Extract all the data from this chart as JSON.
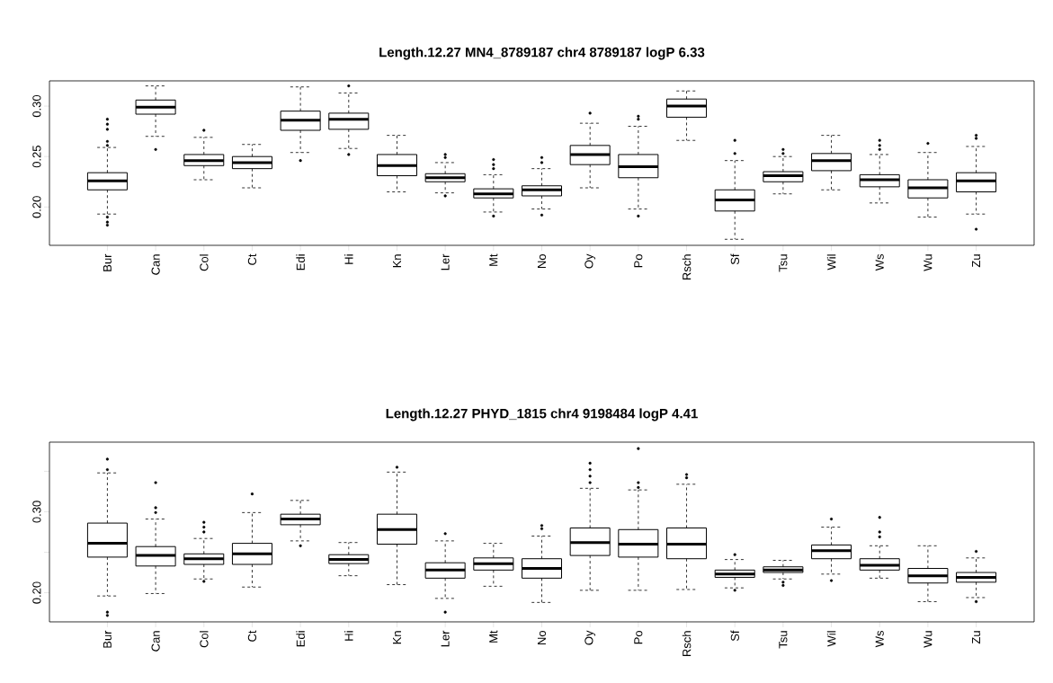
{
  "chart_data": [
    {
      "type": "box",
      "title": "Length.12.27 MN4_8789187 chr4 8789187 logP 6.33",
      "categories": [
        "Bur",
        "Can",
        "Col",
        "Ct",
        "Edi",
        "Hi",
        "Kn",
        "Ler",
        "Mt",
        "No",
        "Oy",
        "Po",
        "Rsch",
        "Sf",
        "Tsu",
        "Wil",
        "Ws",
        "Wu",
        "Zu"
      ],
      "ylim": [
        0.162,
        0.325
      ],
      "yticks": [
        {
          "value": 0.2,
          "label": "0.20"
        },
        0.25,
        {
          "value": 0.3,
          "label": "0.30"
        }
      ],
      "boxes": [
        {
          "low": 0.193,
          "q1": 0.217,
          "median": 0.226,
          "q3": 0.234,
          "high": 0.259,
          "outliers": [
            0.287,
            0.282,
            0.277,
            0.265,
            0.261,
            0.19,
            0.185,
            0.182
          ]
        },
        {
          "low": 0.27,
          "q1": 0.292,
          "median": 0.299,
          "q3": 0.306,
          "high": 0.32,
          "outliers": [
            0.257
          ]
        },
        {
          "low": 0.227,
          "q1": 0.241,
          "median": 0.246,
          "q3": 0.252,
          "high": 0.269,
          "outliers": [
            0.276
          ]
        },
        {
          "low": 0.219,
          "q1": 0.238,
          "median": 0.244,
          "q3": 0.25,
          "high": 0.262
        },
        {
          "low": 0.254,
          "q1": 0.276,
          "median": 0.286,
          "q3": 0.295,
          "high": 0.319,
          "outliers": [
            0.246
          ]
        },
        {
          "low": 0.258,
          "q1": 0.277,
          "median": 0.287,
          "q3": 0.293,
          "high": 0.313,
          "outliers": [
            0.32,
            0.252
          ]
        },
        {
          "low": 0.215,
          "q1": 0.231,
          "median": 0.241,
          "q3": 0.252,
          "high": 0.271
        },
        {
          "low": 0.214,
          "q1": 0.225,
          "median": 0.229,
          "q3": 0.233,
          "high": 0.244,
          "outliers": [
            0.252,
            0.249,
            0.211
          ]
        },
        {
          "low": 0.195,
          "q1": 0.209,
          "median": 0.213,
          "q3": 0.218,
          "high": 0.232,
          "outliers": [
            0.247,
            0.242,
            0.238,
            0.191
          ]
        },
        {
          "low": 0.198,
          "q1": 0.211,
          "median": 0.217,
          "q3": 0.221,
          "high": 0.238,
          "outliers": [
            0.249,
            0.244,
            0.192
          ]
        },
        {
          "low": 0.219,
          "q1": 0.242,
          "median": 0.252,
          "q3": 0.261,
          "high": 0.283,
          "outliers": [
            0.293
          ]
        },
        {
          "low": 0.198,
          "q1": 0.229,
          "median": 0.24,
          "q3": 0.252,
          "high": 0.28,
          "outliers": [
            0.29,
            0.287,
            0.191
          ]
        },
        {
          "low": 0.266,
          "q1": 0.289,
          "median": 0.3,
          "q3": 0.307,
          "high": 0.315
        },
        {
          "low": 0.168,
          "q1": 0.196,
          "median": 0.207,
          "q3": 0.217,
          "high": 0.246,
          "outliers": [
            0.266,
            0.253
          ]
        },
        {
          "low": 0.213,
          "q1": 0.225,
          "median": 0.231,
          "q3": 0.235,
          "high": 0.25,
          "outliers": [
            0.257,
            0.253
          ]
        },
        {
          "low": 0.217,
          "q1": 0.236,
          "median": 0.246,
          "q3": 0.253,
          "high": 0.271
        },
        {
          "low": 0.204,
          "q1": 0.22,
          "median": 0.227,
          "q3": 0.232,
          "high": 0.252,
          "outliers": [
            0.266,
            0.261,
            0.257
          ]
        },
        {
          "low": 0.19,
          "q1": 0.209,
          "median": 0.219,
          "q3": 0.227,
          "high": 0.254,
          "outliers": [
            0.263
          ]
        },
        {
          "low": 0.193,
          "q1": 0.215,
          "median": 0.226,
          "q3": 0.234,
          "high": 0.26,
          "outliers": [
            0.271,
            0.268,
            0.178
          ]
        }
      ]
    },
    {
      "type": "box",
      "title": "Length.12.27 PHYD_1815 chr4 9198484 logP 4.41",
      "categories": [
        "Bur",
        "Can",
        "Col",
        "Ct",
        "Edi",
        "Hi",
        "Kn",
        "Ler",
        "Mt",
        "No",
        "Oy",
        "Po",
        "Rsch",
        "Sf",
        "Tsu",
        "Wil",
        "Ws",
        "Wu",
        "Zu"
      ],
      "ylim": [
        0.164,
        0.386
      ],
      "yticks": [
        {
          "value": 0.2,
          "label": "0.20"
        },
        {
          "value": 0.25,
          "label": null
        },
        {
          "value": 0.3,
          "label": "0.30"
        },
        {
          "value": 0.35,
          "label": null
        }
      ],
      "boxes": [
        {
          "low": 0.196,
          "q1": 0.244,
          "median": 0.261,
          "q3": 0.286,
          "high": 0.348,
          "outliers": [
            0.365,
            0.352,
            0.176,
            0.172
          ]
        },
        {
          "low": 0.199,
          "q1": 0.233,
          "median": 0.246,
          "q3": 0.257,
          "high": 0.291,
          "outliers": [
            0.336,
            0.305,
            0.299
          ]
        },
        {
          "low": 0.217,
          "q1": 0.235,
          "median": 0.242,
          "q3": 0.248,
          "high": 0.267,
          "outliers": [
            0.287,
            0.281,
            0.275,
            0.214
          ]
        },
        {
          "low": 0.207,
          "q1": 0.235,
          "median": 0.248,
          "q3": 0.261,
          "high": 0.299,
          "outliers": [
            0.322
          ]
        },
        {
          "low": 0.264,
          "q1": 0.284,
          "median": 0.291,
          "q3": 0.297,
          "high": 0.314,
          "outliers": [
            0.258
          ]
        },
        {
          "low": 0.221,
          "q1": 0.236,
          "median": 0.241,
          "q3": 0.247,
          "high": 0.262
        },
        {
          "low": 0.21,
          "q1": 0.26,
          "median": 0.278,
          "q3": 0.297,
          "high": 0.349,
          "outliers": [
            0.355
          ]
        },
        {
          "low": 0.193,
          "q1": 0.218,
          "median": 0.228,
          "q3": 0.237,
          "high": 0.264,
          "outliers": [
            0.273,
            0.176
          ]
        },
        {
          "low": 0.208,
          "q1": 0.228,
          "median": 0.236,
          "q3": 0.243,
          "high": 0.261
        },
        {
          "low": 0.188,
          "q1": 0.218,
          "median": 0.23,
          "q3": 0.242,
          "high": 0.27,
          "outliers": [
            0.283,
            0.279
          ]
        },
        {
          "low": 0.203,
          "q1": 0.246,
          "median": 0.262,
          "q3": 0.28,
          "high": 0.329,
          "outliers": [
            0.36,
            0.352,
            0.344,
            0.336
          ]
        },
        {
          "low": 0.203,
          "q1": 0.244,
          "median": 0.26,
          "q3": 0.278,
          "high": 0.327,
          "outliers": [
            0.378,
            0.336,
            0.33
          ]
        },
        {
          "low": 0.204,
          "q1": 0.242,
          "median": 0.26,
          "q3": 0.28,
          "high": 0.334,
          "outliers": [
            0.346,
            0.342
          ]
        },
        {
          "low": 0.206,
          "q1": 0.219,
          "median": 0.223,
          "q3": 0.228,
          "high": 0.241,
          "outliers": [
            0.247,
            0.203
          ]
        },
        {
          "low": 0.217,
          "q1": 0.225,
          "median": 0.228,
          "q3": 0.232,
          "high": 0.24,
          "outliers": [
            0.213,
            0.209
          ]
        },
        {
          "low": 0.223,
          "q1": 0.242,
          "median": 0.252,
          "q3": 0.259,
          "high": 0.281,
          "outliers": [
            0.291,
            0.215
          ]
        },
        {
          "low": 0.218,
          "q1": 0.228,
          "median": 0.234,
          "q3": 0.242,
          "high": 0.258,
          "outliers": [
            0.293,
            0.275,
            0.269
          ]
        },
        {
          "low": 0.189,
          "q1": 0.212,
          "median": 0.221,
          "q3": 0.23,
          "high": 0.258
        },
        {
          "low": 0.194,
          "q1": 0.213,
          "median": 0.219,
          "q3": 0.225,
          "high": 0.243,
          "outliers": [
            0.251,
            0.189
          ]
        }
      ]
    }
  ]
}
